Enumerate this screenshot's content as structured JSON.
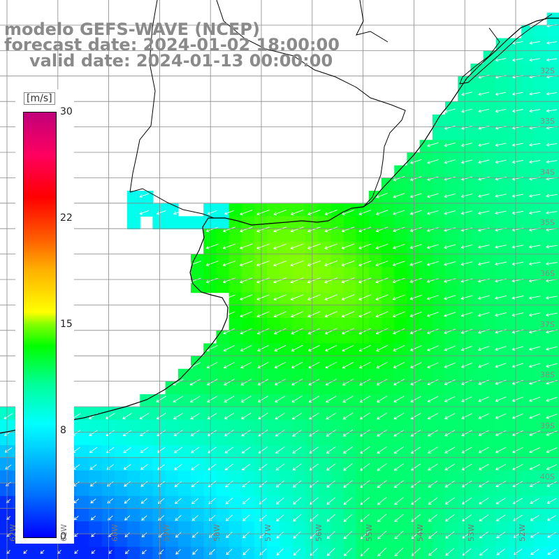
{
  "title": {
    "line1": "modelo GEFS-WAVE (NCEP)",
    "line2": "forecast date: 2024-01-02 18:00:00",
    "line3": "valid date: 2024-01-13 00:00:00"
  },
  "colorbar": {
    "unit": "[m/s]",
    "ticks": [
      "30",
      "22",
      "15",
      "8",
      "0"
    ]
  },
  "lat_labels": [
    "32S",
    "33S",
    "34S",
    "35S",
    "36S",
    "37S",
    "38S",
    "39S",
    "40S"
  ],
  "lon_labels": [
    "62W",
    "61W",
    "60W",
    "59W",
    "58W",
    "57W",
    "56W",
    "55W",
    "54W",
    "53W",
    "52W"
  ],
  "colors": {
    "land": "#ffffff",
    "grid": "#888888",
    "coast": "#000000",
    "arrow": "#ffffff"
  }
}
